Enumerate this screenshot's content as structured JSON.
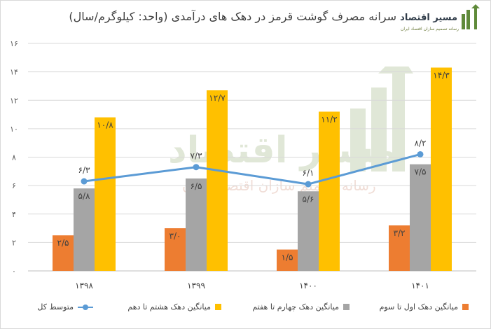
{
  "brand": {
    "name": "مسیر اقتصاد",
    "tagline": "رسانه تصمیم سازان اقتصاد ایران"
  },
  "chart_data": {
    "type": "bar",
    "title": "سرانه مصرف گوشت قرمز در دهک های درآمدی (واحد: کیلوگرم/سال)",
    "categories": [
      "۱۳۹۸",
      "۱۳۹۹",
      "۱۴۰۰",
      "۱۴۰۱"
    ],
    "ylim": [
      0,
      16
    ],
    "yticks": [
      0,
      2,
      4,
      6,
      8,
      10,
      12,
      14,
      16
    ],
    "ytick_labels": [
      "۰",
      "۲",
      "۴",
      "۶",
      "۸",
      "۱۰",
      "۱۲",
      "۱۴",
      "۱۶"
    ],
    "grid": true,
    "legend_position": "bottom",
    "series": [
      {
        "name": "میانگین دهک اول تا سوم",
        "type": "bar",
        "color": "#ed7d31",
        "values": [
          2.5,
          3.0,
          1.5,
          3.2
        ],
        "labels": [
          "۲/۵",
          "۳/۰",
          "۱/۵",
          "۳/۲"
        ]
      },
      {
        "name": "میانگین دهک چهارم تا هفتم",
        "type": "bar",
        "color": "#a5a5a5",
        "values": [
          5.8,
          6.5,
          5.6,
          7.5
        ],
        "labels": [
          "۵/۸",
          "۶/۵",
          "۵/۶",
          "۷/۵"
        ]
      },
      {
        "name": "میانگین دهک هشتم تا دهم",
        "type": "bar",
        "color": "#ffc000",
        "values": [
          10.8,
          12.7,
          11.2,
          14.3
        ],
        "labels": [
          "۱۰/۸",
          "۱۲/۷",
          "۱۱/۲",
          "۱۴/۳"
        ]
      },
      {
        "name": "متوسط کل",
        "type": "line",
        "color": "#5b9bd5",
        "values": [
          6.3,
          7.3,
          6.1,
          8.2
        ],
        "labels": [
          "۶/۳",
          "۷/۳",
          "۶/۱",
          "۸/۲"
        ]
      }
    ]
  }
}
